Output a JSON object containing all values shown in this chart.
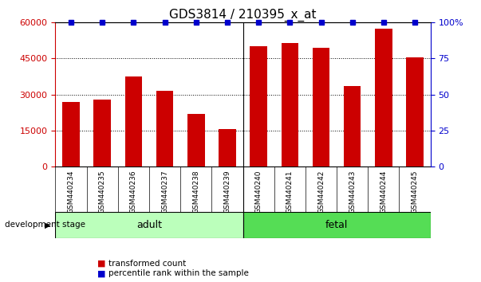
{
  "title": "GDS3814 / 210395_x_at",
  "categories": [
    "GSM440234",
    "GSM440235",
    "GSM440236",
    "GSM440237",
    "GSM440238",
    "GSM440239",
    "GSM440240",
    "GSM440241",
    "GSM440242",
    "GSM440243",
    "GSM440244",
    "GSM440245"
  ],
  "red_values": [
    27000,
    28000,
    37500,
    31500,
    22000,
    15500,
    50000,
    51500,
    49500,
    33500,
    57500,
    45500
  ],
  "blue_values": [
    100,
    100,
    100,
    100,
    100,
    100,
    100,
    100,
    100,
    100,
    100,
    100
  ],
  "adult_indices": [
    0,
    1,
    2,
    3,
    4,
    5
  ],
  "fetal_indices": [
    6,
    7,
    8,
    9,
    10,
    11
  ],
  "adult_label": "adult",
  "fetal_label": "fetal",
  "dev_stage_label": "development stage",
  "left_ylim": [
    0,
    60000
  ],
  "left_yticks": [
    0,
    15000,
    30000,
    45000,
    60000
  ],
  "left_yticklabels": [
    "0",
    "15000",
    "30000",
    "45000",
    "60000"
  ],
  "right_ylim": [
    0,
    100
  ],
  "right_yticks": [
    0,
    25,
    50,
    75,
    100
  ],
  "right_yticklabels": [
    "0",
    "25",
    "50",
    "75",
    "100%"
  ],
  "red_color": "#cc0000",
  "blue_color": "#0000cc",
  "adult_color": "#bbffbb",
  "fetal_color": "#55dd55",
  "xlabels_bg_color": "#cccccc",
  "legend_red_label": "transformed count",
  "legend_blue_label": "percentile rank within the sample",
  "title_fontsize": 11,
  "tick_fontsize": 8,
  "label_fontsize": 8
}
